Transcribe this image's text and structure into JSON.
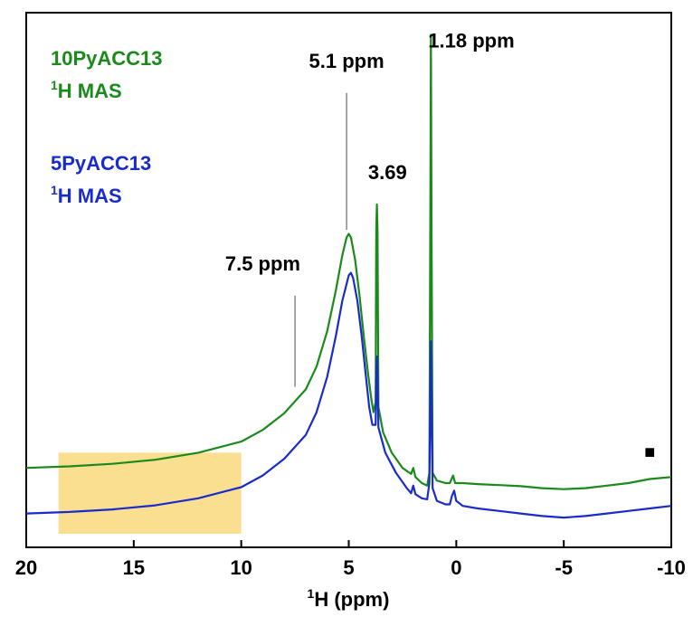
{
  "chart_data": {
    "type": "line",
    "xlabel_prefix": "1",
    "xlabel_text": "H (ppm)",
    "xlim": [
      20,
      -10
    ],
    "x_reversed": true,
    "x_ticks": [
      20,
      15,
      10,
      5,
      0,
      -5,
      -10
    ],
    "x_tick_labels": [
      "20",
      "15",
      "10",
      "5",
      "0",
      "-5",
      "-10"
    ],
    "y_axis_visible": false,
    "grid": false,
    "series": [
      {
        "name_line1": "10PyACC13",
        "name_line2_sup": "1",
        "name_line2": "H MAS",
        "color": "#1a8a1a",
        "points": [
          [
            20,
            0.13
          ],
          [
            18,
            0.133
          ],
          [
            16,
            0.138
          ],
          [
            14,
            0.146
          ],
          [
            12,
            0.16
          ],
          [
            10,
            0.182
          ],
          [
            9,
            0.205
          ],
          [
            8,
            0.238
          ],
          [
            7,
            0.285
          ],
          [
            6.5,
            0.33
          ],
          [
            6,
            0.4
          ],
          [
            5.6,
            0.48
          ],
          [
            5.3,
            0.55
          ],
          [
            5.1,
            0.585
          ],
          [
            5.0,
            0.592
          ],
          [
            4.9,
            0.585
          ],
          [
            4.7,
            0.54
          ],
          [
            4.5,
            0.47
          ],
          [
            4.3,
            0.39
          ],
          [
            4.1,
            0.315
          ],
          [
            3.95,
            0.265
          ],
          [
            3.85,
            0.24
          ],
          [
            3.75,
            0.26
          ],
          [
            3.72,
            0.6
          ],
          [
            3.69,
            0.65
          ],
          [
            3.66,
            0.6
          ],
          [
            3.62,
            0.25
          ],
          [
            3.4,
            0.2
          ],
          [
            3.0,
            0.16
          ],
          [
            2.5,
            0.13
          ],
          [
            2.1,
            0.118
          ],
          [
            2.0,
            0.13
          ],
          [
            1.9,
            0.112
          ],
          [
            1.6,
            0.1
          ],
          [
            1.35,
            0.095
          ],
          [
            1.25,
            0.12
          ],
          [
            1.21,
            0.6
          ],
          [
            1.18,
            0.985
          ],
          [
            1.15,
            0.6
          ],
          [
            1.1,
            0.12
          ],
          [
            0.9,
            0.105
          ],
          [
            0.5,
            0.1
          ],
          [
            0.3,
            0.1
          ],
          [
            0.15,
            0.115
          ],
          [
            0.05,
            0.1
          ],
          [
            -0.3,
            0.1
          ],
          [
            -1,
            0.098
          ],
          [
            -2,
            0.096
          ],
          [
            -3,
            0.094
          ],
          [
            -4,
            0.09
          ],
          [
            -5,
            0.088
          ],
          [
            -6,
            0.09
          ],
          [
            -7,
            0.095
          ],
          [
            -8,
            0.1
          ],
          [
            -9,
            0.108
          ],
          [
            -10,
            0.112
          ]
        ]
      },
      {
        "name_line1": "5PyACC13",
        "name_line2_sup": "1",
        "name_line2": "H MAS",
        "color": "#1a2bcc",
        "points": [
          [
            20,
            0.04
          ],
          [
            18,
            0.043
          ],
          [
            16,
            0.048
          ],
          [
            14,
            0.056
          ],
          [
            12,
            0.07
          ],
          [
            10,
            0.092
          ],
          [
            9,
            0.115
          ],
          [
            8,
            0.148
          ],
          [
            7,
            0.195
          ],
          [
            6.5,
            0.24
          ],
          [
            6,
            0.31
          ],
          [
            5.6,
            0.39
          ],
          [
            5.3,
            0.46
          ],
          [
            5.0,
            0.51
          ],
          [
            4.9,
            0.515
          ],
          [
            4.8,
            0.505
          ],
          [
            4.6,
            0.46
          ],
          [
            4.4,
            0.39
          ],
          [
            4.2,
            0.31
          ],
          [
            4.05,
            0.25
          ],
          [
            3.9,
            0.215
          ],
          [
            3.75,
            0.215
          ],
          [
            3.71,
            0.32
          ],
          [
            3.69,
            0.35
          ],
          [
            3.67,
            0.32
          ],
          [
            3.62,
            0.21
          ],
          [
            3.3,
            0.16
          ],
          [
            2.8,
            0.12
          ],
          [
            2.3,
            0.09
          ],
          [
            2.1,
            0.08
          ],
          [
            2.0,
            0.095
          ],
          [
            1.9,
            0.078
          ],
          [
            1.6,
            0.07
          ],
          [
            1.35,
            0.068
          ],
          [
            1.25,
            0.1
          ],
          [
            1.21,
            0.25
          ],
          [
            1.18,
            0.38
          ],
          [
            1.15,
            0.25
          ],
          [
            1.1,
            0.09
          ],
          [
            0.9,
            0.065
          ],
          [
            0.5,
            0.058
          ],
          [
            0.3,
            0.058
          ],
          [
            0.2,
            0.075
          ],
          [
            0.1,
            0.085
          ],
          [
            0.0,
            0.065
          ],
          [
            -0.3,
            0.055
          ],
          [
            -1,
            0.05
          ],
          [
            -2,
            0.045
          ],
          [
            -3,
            0.04
          ],
          [
            -4,
            0.035
          ],
          [
            -5,
            0.032
          ],
          [
            -6,
            0.035
          ],
          [
            -7,
            0.04
          ],
          [
            -8,
            0.045
          ],
          [
            -9,
            0.05
          ],
          [
            -10,
            0.055
          ]
        ]
      }
    ],
    "annotations": [
      {
        "text": "5.1 ppm",
        "x": 5.1,
        "y": 0.92,
        "line_from": 0.87,
        "line_to": 0.6,
        "color": "#888888"
      },
      {
        "text": "1.18 ppm",
        "x": -0.7,
        "y": 0.96
      },
      {
        "text": "3.69",
        "x": 3.2,
        "y": 0.7
      },
      {
        "text": "7.5 ppm",
        "x": 9.0,
        "y": 0.52,
        "line_from": 0.47,
        "line_to": 0.29,
        "line_x": 7.5,
        "color": "#888888"
      }
    ],
    "highlight_region": {
      "x_from": 18.5,
      "x_to": 10.0,
      "y_from": 0.0,
      "y_to": 0.16,
      "color": "#f7c948"
    },
    "marker": {
      "symbol": "■",
      "x": -9.0,
      "y": 0.15,
      "color": "#000000"
    }
  }
}
